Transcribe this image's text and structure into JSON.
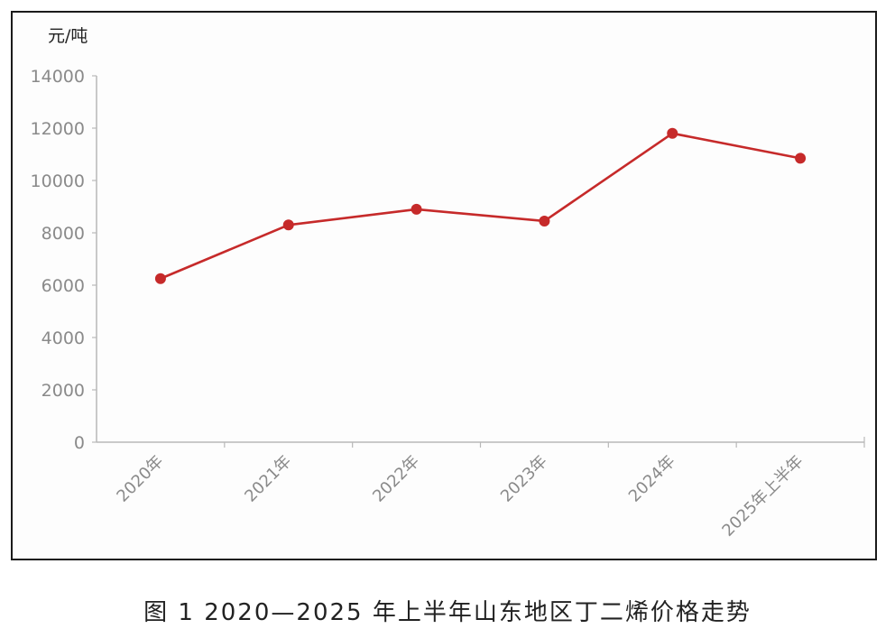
{
  "caption": "图 1  2020—2025 年上半年山东地区丁二烯价格走势",
  "chart_data": {
    "type": "line",
    "ylabel": "元/吨",
    "xlabel": "",
    "ylim": [
      0,
      14000
    ],
    "yticks": [
      "0",
      "2000",
      "4000",
      "6000",
      "8000",
      "10000",
      "12000",
      "14000"
    ],
    "categories": [
      "2020年",
      "2021年",
      "2022年",
      "2023年",
      "2024年",
      "2025年上半年"
    ],
    "series": [
      {
        "values": [
          6250,
          8300,
          8900,
          8450,
          11800,
          10850
        ]
      }
    ],
    "grid": false,
    "line_color": "#c62a2a"
  }
}
